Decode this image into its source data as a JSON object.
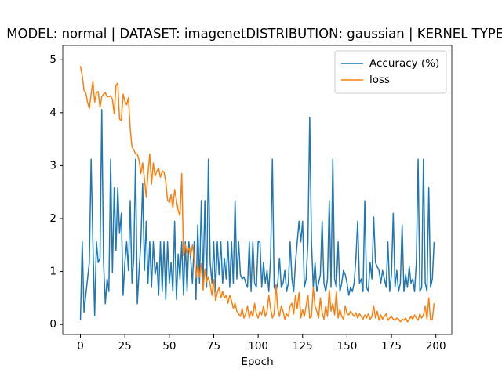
{
  "chart_data": {
    "type": "line",
    "title": "MODEL: normal | DATASET: imagenetDISTRIBUTION: gaussian | KERNEL TYPE:",
    "xlabel": "Epoch",
    "x": [
      0,
      1,
      2,
      3,
      4,
      5,
      6,
      7,
      8,
      9,
      10,
      11,
      12,
      13,
      14,
      15,
      16,
      17,
      18,
      19,
      20,
      21,
      22,
      23,
      24,
      25,
      26,
      27,
      28,
      29,
      30,
      31,
      32,
      33,
      34,
      35,
      36,
      37,
      38,
      39,
      40,
      41,
      42,
      43,
      44,
      45,
      46,
      47,
      48,
      49,
      50,
      51,
      52,
      53,
      54,
      55,
      56,
      57,
      58,
      59,
      60,
      61,
      62,
      63,
      64,
      65,
      66,
      67,
      68,
      69,
      70,
      71,
      72,
      73,
      74,
      75,
      76,
      77,
      78,
      79,
      80,
      81,
      82,
      83,
      84,
      85,
      86,
      87,
      88,
      89,
      90,
      91,
      92,
      93,
      94,
      95,
      96,
      97,
      98,
      99,
      100,
      101,
      102,
      103,
      104,
      105,
      106,
      107,
      108,
      109,
      110,
      111,
      112,
      113,
      114,
      115,
      116,
      117,
      118,
      119,
      120,
      121,
      122,
      123,
      124,
      125,
      126,
      127,
      128,
      129,
      130,
      131,
      132,
      133,
      134,
      135,
      136,
      137,
      138,
      139,
      140,
      141,
      142,
      143,
      144,
      145,
      146,
      147,
      148,
      149,
      150,
      151,
      152,
      153,
      154,
      155,
      156,
      157,
      158,
      159,
      160,
      161,
      162,
      163,
      164,
      165,
      166,
      167,
      168,
      169,
      170,
      171,
      172,
      173,
      174,
      175,
      176,
      177,
      178,
      179,
      180,
      181,
      182,
      183,
      184,
      185,
      186,
      187,
      188,
      189,
      190,
      191,
      192,
      193,
      194,
      195,
      196,
      197,
      198,
      199
    ],
    "series": [
      {
        "name": "Accuracy (%)",
        "color": "#1f77b4",
        "values": [
          0.08,
          1.56,
          0.23,
          0.55,
          0.86,
          1.17,
          3.12,
          1.56,
          0.16,
          1.56,
          1.17,
          1.25,
          4.06,
          1.17,
          0.39,
          0.86,
          0.62,
          3.12,
          0.98,
          2.58,
          1.4,
          2.58,
          1.72,
          2.1,
          0.55,
          1.17,
          1.56,
          1.02,
          2.34,
          0.78,
          1.25,
          3.12,
          0.39,
          1.02,
          1.56,
          2.66,
          1.02,
          1.95,
          0.78,
          1.56,
          0.7,
          1.56,
          0.94,
          1.17,
          0.55,
          1.56,
          0.62,
          1.56,
          0.47,
          1.56,
          0.78,
          1.17,
          0.62,
          1.95,
          0.47,
          1.33,
          0.86,
          1.56,
          0.55,
          1.56,
          0.62,
          1.56,
          1.25,
          0.78,
          1.56,
          0.47,
          1.88,
          0.78,
          2.34,
          0.78,
          2.34,
          0.7,
          3.12,
          1.17,
          0.78,
          1.56,
          0.62,
          1.56,
          0.94,
          1.56,
          0.78,
          1.25,
          0.86,
          1.56,
          0.7,
          1.56,
          0.78,
          2.34,
          0.86,
          1.56,
          0.94,
          0.86,
          0.9,
          0.78,
          0.7,
          1.56,
          0.62,
          1.56,
          0.78,
          0.7,
          1.56,
          1.56,
          0.7,
          1.17,
          0.78,
          1.02,
          0.62,
          1.25,
          3.12,
          0.7,
          0.62,
          0.78,
          1.25,
          0.7,
          0.78,
          1.02,
          0.62,
          0.78,
          1.56,
          0.86,
          0.62,
          1.17,
          1.56,
          1.95,
          1.56,
          1.95,
          0.7,
          0.86,
          1.56,
          3.91,
          1.56,
          0.7,
          1.17,
          0.62,
          0.78,
          0.94,
          1.95,
          0.78,
          0.62,
          0.86,
          2.34,
          0.7,
          3.12,
          0.86,
          0.7,
          1.56,
          0.62,
          0.78,
          1.02,
          0.94,
          0.78,
          0.55,
          0.7,
          0.62,
          0.78,
          1.25,
          1.95,
          0.78,
          0.86,
          0.62,
          2.34,
          0.7,
          0.62,
          1.17,
          0.86,
          2.03,
          1.17,
          1.09,
          1.02,
          0.78,
          1.02,
          0.86,
          0.7,
          1.56,
          0.62,
          0.94,
          2.1,
          0.7,
          1.02,
          0.62,
          0.78,
          1.88,
          0.62,
          0.94,
          0.7,
          1.09,
          0.78,
          0.86,
          0.62,
          1.17,
          3.12,
          0.62,
          0.7,
          3.12,
          0.78,
          0.62,
          2.58,
          0.7,
          0.86,
          1.56
        ]
      },
      {
        "name": "loss",
        "color": "#ff7f0e",
        "values": [
          4.88,
          4.7,
          4.42,
          4.38,
          4.2,
          4.08,
          4.35,
          4.59,
          4.2,
          4.38,
          4.4,
          4.1,
          4.3,
          4.35,
          4.38,
          4.3,
          4.3,
          4.32,
          4.25,
          3.98,
          4.52,
          4.56,
          3.88,
          3.85,
          4.35,
          4.22,
          4.15,
          4.28,
          3.7,
          3.35,
          3.3,
          3.22,
          3.22,
          3.1,
          2.85,
          3.05,
          2.75,
          2.4,
          2.85,
          3.22,
          2.65,
          3.05,
          2.8,
          2.9,
          2.95,
          2.78,
          2.9,
          2.88,
          2.7,
          2.35,
          2.3,
          2.45,
          2.2,
          2.55,
          2.35,
          2.15,
          2.05,
          2.85,
          1.3,
          1.5,
          1.35,
          1.45,
          1.3,
          1.5,
          1.25,
          0.88,
          1.1,
          0.9,
          1.15,
          0.65,
          1.05,
          0.8,
          0.9,
          0.75,
          0.55,
          0.85,
          0.45,
          0.6,
          0.7,
          0.5,
          0.62,
          0.5,
          0.55,
          0.4,
          0.55,
          0.45,
          0.3,
          0.4,
          0.25,
          0.2,
          0.15,
          0.3,
          0.12,
          0.2,
          0.35,
          0.12,
          0.25,
          0.15,
          0.4,
          0.2,
          0.12,
          0.25,
          0.18,
          0.35,
          0.15,
          0.25,
          0.55,
          0.3,
          0.12,
          0.2,
          0.75,
          0.3,
          0.15,
          0.35,
          0.25,
          0.1,
          0.2,
          0.15,
          0.35,
          0.4,
          0.2,
          0.55,
          0.3,
          0.6,
          0.12,
          0.28,
          0.15,
          0.35,
          0.55,
          0.12,
          0.15,
          0.7,
          0.35,
          0.25,
          0.12,
          0.5,
          0.22,
          0.1,
          0.35,
          0.15,
          0.65,
          0.25,
          0.4,
          0.18,
          0.62,
          0.12,
          0.28,
          0.15,
          0.1,
          0.35,
          0.2,
          0.18,
          0.25,
          0.2,
          0.15,
          0.22,
          0.12,
          0.2,
          0.15,
          0.1,
          0.18,
          0.12,
          0.2,
          0.1,
          0.15,
          0.35,
          0.12,
          0.25,
          0.08,
          0.18,
          0.1,
          0.15,
          0.2,
          0.08,
          0.12,
          0.15,
          0.1,
          0.08,
          0.12,
          0.1,
          0.05,
          0.1,
          0.08,
          0.12,
          0.05,
          0.1,
          0.15,
          0.1,
          0.18,
          0.12,
          0.08,
          0.2,
          0.12,
          0.18,
          0.35,
          0.1,
          0.5,
          0.08,
          0.1,
          0.4
        ]
      }
    ],
    "xlim": [
      -9.95,
      208.95
    ],
    "xticks": [
      0,
      25,
      50,
      75,
      100,
      125,
      150,
      175,
      200
    ],
    "ylim": [
      -0.19,
      5.27
    ],
    "yticks": [
      0,
      1,
      2,
      3,
      4,
      5
    ],
    "legend": "upper right"
  }
}
